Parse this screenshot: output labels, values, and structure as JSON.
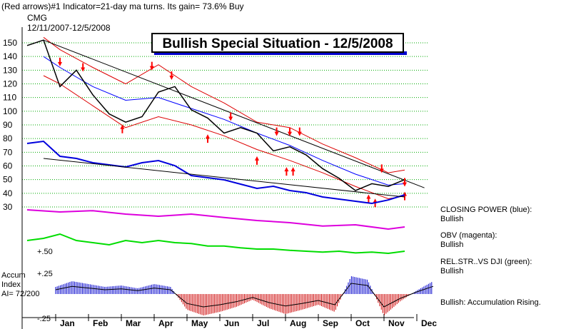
{
  "header": {
    "line1": "(Red arrows)#1 Indicator=21-day ma turns.  Its gain= 73.6% Buy",
    "ticker": "CMG",
    "range": "12/11/2007-12/5/2008"
  },
  "banner": "Bullish Special Situation - 12/5/2008",
  "side_notes": [
    {
      "title": "CLOSING POWER (blue):",
      "value": "Bullish"
    },
    {
      "title": "OBV (magenta):",
      "value": "Bullish"
    },
    {
      "title": "REL.STR..VS DJI (green):",
      "value": "Bullish"
    },
    {
      "title": "Bullish: Accumulation Rising.",
      "value": ""
    }
  ],
  "accum_label": [
    "Accum",
    "Index",
    "AI= 72/200"
  ],
  "indicator_levels": [
    "+.50",
    "+.25",
    "-.25"
  ],
  "colors": {
    "price": "#000000",
    "bands": "#dd0000",
    "ma": "#0000ff",
    "closing_power": "#0000dd",
    "obv": "#dd00dd",
    "relstr": "#00dd00",
    "grid": "#00aa00",
    "arrows": "#ff0000"
  },
  "chart_data": {
    "type": "line",
    "title": "Bullish Special Situation - 12/5/2008",
    "months": [
      "Jan",
      "Feb",
      "Mar",
      "Apr",
      "May",
      "Jun",
      "Jul",
      "Aug",
      "Sep",
      "Oct",
      "Nov",
      "Dec"
    ],
    "yticks": [
      150,
      140,
      130,
      120,
      110,
      100,
      90,
      80,
      70,
      60,
      50,
      40,
      30
    ],
    "ylim": [
      25,
      155
    ],
    "series": [
      {
        "name": "",
        "kind": "price",
        "x": [
          0,
          0.5,
          1,
          1.5,
          2,
          2.5,
          3,
          3.5,
          4,
          4.5,
          5,
          5.5,
          6,
          6.5,
          7,
          7.5,
          8,
          8.5,
          9,
          9.5,
          10,
          10.5,
          11,
          11.5
        ],
        "values": [
          148,
          152,
          118,
          130,
          112,
          98,
          92,
          96,
          114,
          118,
          101,
          95,
          84,
          88,
          84,
          71,
          74,
          68,
          58,
          51,
          42,
          47,
          45,
          50
        ]
      },
      {
        "name": "",
        "kind": "ma",
        "x": [
          0.5,
          1,
          2,
          3,
          4,
          5,
          6,
          7,
          8,
          9,
          10,
          11,
          11.5
        ],
        "values": [
          140,
          132,
          118,
          108,
          110,
          102,
          94,
          84,
          75,
          64,
          54,
          46,
          47
        ]
      },
      {
        "name": "",
        "kind": "upper_band",
        "x": [
          0.5,
          1,
          2,
          3,
          4,
          5,
          6,
          7,
          8,
          9,
          10,
          11,
          11.5
        ],
        "values": [
          154,
          145,
          132,
          120,
          134,
          118,
          106,
          92,
          88,
          76,
          66,
          55,
          57
        ]
      },
      {
        "name": "",
        "kind": "lower_band",
        "x": [
          0.5,
          1,
          2,
          3,
          4,
          5,
          6,
          7,
          8,
          9,
          10,
          11,
          11.5
        ],
        "values": [
          126,
          120,
          104,
          88,
          96,
          90,
          82,
          72,
          64,
          55,
          45,
          36,
          38
        ]
      }
    ],
    "trendline": {
      "x": [
        0.5,
        12.1
      ],
      "values": [
        152,
        44
      ]
    },
    "sell_arrows": [
      {
        "x": 1.0,
        "y": 136
      },
      {
        "x": 1.7,
        "y": 132
      },
      {
        "x": 3.8,
        "y": 133
      },
      {
        "x": 4.4,
        "y": 126
      },
      {
        "x": 6.2,
        "y": 96
      },
      {
        "x": 7.6,
        "y": 85
      },
      {
        "x": 8.0,
        "y": 85
      },
      {
        "x": 8.3,
        "y": 85
      },
      {
        "x": 10.8,
        "y": 58
      },
      {
        "x": 11.5,
        "y": 48
      }
    ],
    "buy_arrows": [
      {
        "x": 2.9,
        "y": 87
      },
      {
        "x": 5.5,
        "y": 80
      },
      {
        "x": 7.0,
        "y": 64
      },
      {
        "x": 7.9,
        "y": 56
      },
      {
        "x": 8.1,
        "y": 56
      },
      {
        "x": 10.4,
        "y": 36
      },
      {
        "x": 10.6,
        "y": 33
      },
      {
        "x": 11.5,
        "y": 38
      }
    ],
    "closing_power": {
      "x": [
        0,
        0.5,
        1,
        1.5,
        2,
        2.5,
        3,
        3.5,
        4,
        4.5,
        5,
        5.5,
        6,
        6.5,
        7,
        7.5,
        8,
        8.5,
        9,
        9.5,
        10,
        10.5,
        11,
        11.5
      ],
      "values": [
        0.9,
        0.95,
        0.6,
        0.55,
        0.45,
        0.4,
        0.35,
        0.45,
        0.5,
        0.38,
        0.15,
        0.1,
        0.05,
        -0.05,
        -0.15,
        -0.1,
        -0.2,
        -0.25,
        -0.35,
        -0.4,
        -0.45,
        -0.5,
        -0.42,
        -0.3
      ]
    },
    "obv": {
      "x": [
        0,
        1,
        2,
        3,
        4,
        5,
        6,
        7,
        8,
        9,
        10,
        11,
        11.5
      ],
      "values": [
        0.6,
        0.55,
        0.58,
        0.5,
        0.45,
        0.5,
        0.42,
        0.35,
        0.3,
        0.22,
        0.25,
        0.15,
        0.2
      ]
    },
    "relstr": {
      "x": [
        0,
        0.5,
        1,
        1.5,
        2,
        2.5,
        3,
        3.5,
        4,
        4.5,
        5,
        5.5,
        6,
        6.5,
        7,
        7.5,
        8,
        8.5,
        9,
        9.5,
        10,
        10.5,
        11,
        11.5
      ],
      "values": [
        0.55,
        0.6,
        0.7,
        0.55,
        0.5,
        0.45,
        0.55,
        0.5,
        0.55,
        0.5,
        0.48,
        0.42,
        0.42,
        0.38,
        0.35,
        0.35,
        0.32,
        0.3,
        0.28,
        0.3,
        0.26,
        0.28,
        0.25,
        0.3
      ]
    },
    "accum_index": {
      "x": [
        0,
        0.5,
        1,
        1.5,
        2,
        2.5,
        3,
        3.5,
        4,
        4.5,
        5,
        5.5,
        6,
        6.5,
        7,
        7.5,
        8,
        8.5,
        9,
        9.5,
        10,
        10.5,
        11,
        11.5
      ],
      "values": [
        0.1,
        0.18,
        0.14,
        0.1,
        0.12,
        0.08,
        0.14,
        0.1,
        -0.22,
        -0.3,
        -0.25,
        -0.18,
        -0.08,
        -0.2,
        -0.28,
        -0.22,
        -0.15,
        -0.25,
        0.25,
        0.2,
        -0.3,
        -0.1,
        0.05,
        0.18
      ]
    }
  }
}
